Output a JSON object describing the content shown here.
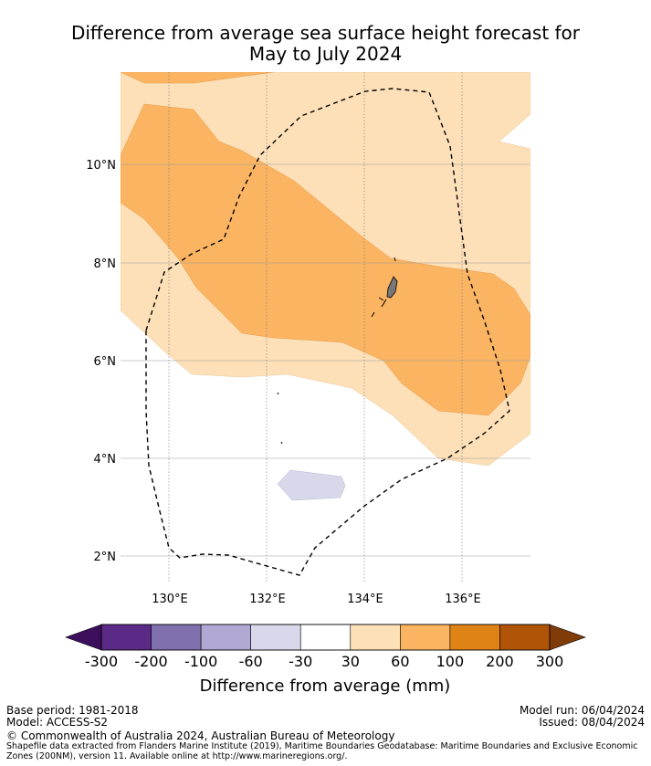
{
  "title_line1": "Difference from average sea surface height forecast for",
  "title_line2": "May to July 2024",
  "map": {
    "lat_labels": [
      "10°N",
      "8°N",
      "6°N",
      "4°N",
      "2°N"
    ],
    "lon_labels": [
      "130°E",
      "132°E",
      "134°E",
      "136°E"
    ],
    "land_feature": "palau-islands",
    "boundary": "eez-200nm-dashed"
  },
  "colorbar": {
    "tick_labels": [
      "-300",
      "-200",
      "-100",
      "-60",
      "-30",
      "30",
      "60",
      "100",
      "200",
      "300"
    ],
    "colors": [
      "#3b0f5c",
      "#5a2a86",
      "#8070ae",
      "#b0a8d2",
      "#d8d8ea",
      "#ffffff",
      "#fde0b8",
      "#fbb462",
      "#e08316",
      "#b05508",
      "#7f3b08"
    ],
    "label": "Difference from average (mm)"
  },
  "meta": {
    "base_period": "Base period: 1981-2018",
    "model": "Model: ACCESS-S2",
    "model_run": "Model run: 06/04/2024",
    "issued": "Issued: 08/04/2024",
    "copyright": "© Commonwealth of Australia 2024, Australian Bureau of Meteorology",
    "shapefile_note": "Shapefile data extracted from Flanders Marine Institute (2019), Maritime Boundaries Geodatabase: Maritime Boundaries and Exclusive Economic Zones (200NM), version 11. Available online at http://www.marineregions.org/."
  }
}
